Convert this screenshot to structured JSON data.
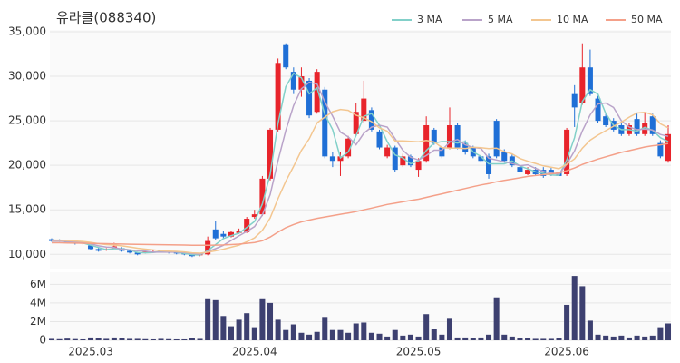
{
  "chart_data": {
    "type": "candlestick",
    "title": "유라클(088340)",
    "categories": [
      null,
      null,
      null,
      null,
      null,
      "2025.03",
      null,
      null,
      null,
      null,
      null,
      null,
      null,
      null,
      null,
      null,
      null,
      null,
      null,
      null,
      null,
      null,
      null,
      null,
      null,
      null,
      "2025.04",
      null,
      null,
      null,
      null,
      null,
      null,
      null,
      null,
      null,
      null,
      null,
      null,
      null,
      null,
      null,
      null,
      null,
      null,
      null,
      null,
      "2025.05",
      null,
      null,
      null,
      null,
      null,
      null,
      null,
      null,
      null,
      null,
      null,
      null,
      null,
      null,
      null,
      null,
      null,
      null,
      "2025.06",
      null,
      null,
      null,
      null,
      null,
      null,
      null,
      null,
      null,
      null,
      null,
      null,
      null
    ],
    "open": [
      11700,
      11600,
      11500,
      11400,
      11200,
      11000,
      10600,
      10500,
      10700,
      10700,
      10400,
      10200,
      10200,
      10300,
      10300,
      10300,
      10200,
      10100,
      10000,
      9900,
      10000,
      12800,
      12300,
      12000,
      12400,
      12500,
      14200,
      14500,
      18500,
      24000,
      33500,
      30500,
      28500,
      29500,
      26000,
      28500,
      21000,
      20500,
      21000,
      23500,
      25000,
      26200,
      23800,
      21000,
      22000,
      20000,
      21000,
      19500,
      20500,
      24000,
      22000,
      22000,
      24500,
      22500,
      22000,
      21000,
      21000,
      25000,
      21500,
      21000,
      19800,
      19000,
      19500,
      19500,
      19500,
      19200,
      19000,
      28000,
      27000,
      31000,
      27500,
      25500,
      25000,
      24500,
      23500,
      25200,
      23500,
      25500,
      22500,
      20500
    ],
    "high": [
      11800,
      11700,
      11600,
      11450,
      11400,
      11100,
      10700,
      10700,
      11300,
      10800,
      10500,
      10300,
      10400,
      10450,
      10500,
      10400,
      10300,
      10200,
      10100,
      10100,
      12000,
      13700,
      12600,
      12600,
      12900,
      14200,
      15000,
      18800,
      24200,
      32000,
      33700,
      31000,
      31000,
      29800,
      30800,
      28800,
      21500,
      21500,
      23300,
      27000,
      29500,
      26500,
      24000,
      22300,
      22200,
      21300,
      21200,
      20800,
      25500,
      24200,
      22200,
      26500,
      24800,
      22800,
      22200,
      21200,
      21300,
      25200,
      21800,
      21200,
      20000,
      19800,
      19800,
      19800,
      19700,
      19400,
      24200,
      29000,
      33700,
      33000,
      27800,
      25800,
      25300,
      24800,
      24800,
      25800,
      26000,
      25800,
      22800,
      24500
    ],
    "low": [
      11400,
      11400,
      11200,
      11100,
      11100,
      10500,
      10300,
      10400,
      10600,
      10300,
      10100,
      9900,
      10100,
      10200,
      10200,
      10100,
      10000,
      9900,
      9700,
      9800,
      9900,
      11600,
      11800,
      11900,
      12300,
      12400,
      14000,
      14300,
      18300,
      23800,
      30800,
      28000,
      27700,
      25300,
      25800,
      20800,
      19800,
      18800,
      20800,
      23300,
      24800,
      23800,
      21800,
      20800,
      19300,
      19800,
      19800,
      18700,
      20300,
      22300,
      20800,
      21800,
      21800,
      21200,
      20800,
      20300,
      18500,
      20800,
      20300,
      19800,
      19200,
      18900,
      18800,
      18600,
      18800,
      17800,
      18800,
      24300,
      26800,
      27800,
      24800,
      24300,
      23800,
      23300,
      23300,
      23300,
      23300,
      23300,
      20800,
      20300
    ],
    "close": [
      11500,
      11500,
      11300,
      11200,
      11300,
      10600,
      10400,
      10600,
      10900,
      10400,
      10200,
      10000,
      10300,
      10300,
      10400,
      10200,
      10100,
      10000,
      9800,
      10000,
      11500,
      11800,
      12000,
      12500,
      12600,
      14000,
      14500,
      18500,
      24000,
      31500,
      31000,
      28500,
      30000,
      25600,
      30500,
      21000,
      20500,
      21000,
      23000,
      26000,
      27500,
      24000,
      22000,
      22000,
      19500,
      21000,
      20000,
      20500,
      24500,
      22500,
      21000,
      24500,
      22000,
      21500,
      21000,
      20500,
      19000,
      21000,
      20500,
      20000,
      19300,
      19500,
      19000,
      18800,
      19000,
      18800,
      24000,
      26500,
      31000,
      28000,
      25000,
      24500,
      24000,
      23500,
      24500,
      23500,
      24800,
      23500,
      21000,
      23500
    ],
    "up_color": "#e8242b",
    "down_color": "#1f6fd6",
    "series": [
      {
        "name": "3 MA",
        "color": "#82d0c9",
        "values": [
          11500,
          11500,
          11430,
          11330,
          11270,
          11030,
          10770,
          10530,
          10630,
          10630,
          10500,
          10200,
          10170,
          10200,
          10330,
          10300,
          10230,
          10100,
          9970,
          9930,
          10430,
          11100,
          11770,
          12100,
          12370,
          13030,
          13700,
          15670,
          19000,
          24670,
          28830,
          30330,
          29830,
          28030,
          28700,
          25700,
          24000,
          20830,
          21500,
          23330,
          25500,
          25830,
          24500,
          22670,
          21170,
          20830,
          20170,
          20500,
          21670,
          22500,
          22670,
          22670,
          22500,
          22670,
          21500,
          21000,
          20170,
          20170,
          20170,
          20500,
          19930,
          19600,
          19270,
          19100,
          18930,
          18870,
          20600,
          23100,
          27170,
          28500,
          28000,
          25830,
          24500,
          24000,
          24000,
          23830,
          24270,
          23930,
          23100,
          22670
        ]
      },
      {
        "name": "5 MA",
        "color": "#b9a3c9",
        "values": [
          11500,
          11500,
          11450,
          11400,
          11360,
          11180,
          10960,
          10820,
          10760,
          10580,
          10500,
          10420,
          10360,
          10240,
          10240,
          10240,
          10260,
          10200,
          10100,
          10020,
          10320,
          10640,
          11020,
          11560,
          12080,
          12580,
          13120,
          14420,
          16720,
          20500,
          23900,
          26700,
          28600,
          29320,
          29120,
          27120,
          25520,
          23720,
          23200,
          22300,
          23600,
          24300,
          24500,
          24300,
          23000,
          21700,
          20900,
          20600,
          21100,
          21700,
          21700,
          22600,
          22900,
          22300,
          22000,
          21900,
          20800,
          20600,
          20400,
          20200,
          19960,
          20060,
          19660,
          19320,
          19120,
          19020,
          20120,
          21620,
          23860,
          25660,
          26900,
          27000,
          26500,
          25000,
          24300,
          24000,
          24060,
          23960,
          23460,
          23260
        ]
      },
      {
        "name": "10 MA",
        "color": "#f3c690",
        "values": [
          11600,
          11600,
          11550,
          11500,
          11450,
          11350,
          11200,
          11100,
          11050,
          10960,
          10840,
          10690,
          10590,
          10500,
          10410,
          10370,
          10340,
          10280,
          10170,
          10130,
          10240,
          10400,
          10580,
          10800,
          11030,
          11410,
          11850,
          12700,
          14100,
          16250,
          18200,
          19870,
          21670,
          22980,
          24770,
          25420,
          26020,
          26270,
          26170,
          25620,
          25350,
          24900,
          24200,
          23840,
          22740,
          22740,
          22690,
          22640,
          22790,
          22640,
          21990,
          21930,
          21930,
          21880,
          22030,
          21980,
          21880,
          21930,
          21530,
          21280,
          20760,
          20460,
          20210,
          19940,
          19790,
          19620,
          20120,
          20720,
          21920,
          22820,
          23390,
          23890,
          24390,
          24860,
          25410,
          25880,
          25960,
          25660,
          24660,
          24210
        ]
      },
      {
        "name": "50 MA",
        "color": "#f4a089",
        "values": [
          11300,
          11300,
          11280,
          11260,
          11250,
          11230,
          11210,
          11200,
          11180,
          11160,
          11140,
          11120,
          11110,
          11100,
          11090,
          11080,
          11060,
          11050,
          11030,
          11020,
          11030,
          11040,
          11060,
          11100,
          11150,
          11240,
          11330,
          11530,
          11950,
          12500,
          13000,
          13350,
          13650,
          13850,
          14050,
          14200,
          14350,
          14500,
          14650,
          14800,
          15000,
          15200,
          15400,
          15600,
          15750,
          15900,
          16050,
          16200,
          16400,
          16600,
          16800,
          17000,
          17200,
          17400,
          17600,
          17800,
          17950,
          18150,
          18300,
          18450,
          18600,
          18750,
          18850,
          18950,
          19050,
          19150,
          19400,
          19700,
          20100,
          20400,
          20700,
          20950,
          21200,
          21450,
          21650,
          21850,
          22050,
          22200,
          22300,
          22450
        ]
      }
    ],
    "ylim": [
      8400,
      35200
    ],
    "yticks": [
      {
        "value": 10000,
        "label": "10,000"
      },
      {
        "value": 15000,
        "label": "15,000"
      },
      {
        "value": 20000,
        "label": "20,000"
      },
      {
        "value": 25000,
        "label": "25,000"
      },
      {
        "value": 30000,
        "label": "30,000"
      },
      {
        "value": 35000,
        "label": "35,000"
      }
    ],
    "grid": true,
    "volume": {
      "color": "#3d4070",
      "values": [
        150000,
        120000,
        180000,
        130000,
        100000,
        300000,
        200000,
        150000,
        300000,
        200000,
        150000,
        150000,
        120000,
        100000,
        150000,
        120000,
        100000,
        100000,
        200000,
        150000,
        4500000,
        4300000,
        2600000,
        1500000,
        2200000,
        2900000,
        1400000,
        4500000,
        4000000,
        2200000,
        1100000,
        1700000,
        800000,
        600000,
        900000,
        2500000,
        1100000,
        1100000,
        800000,
        1800000,
        1900000,
        800000,
        700000,
        400000,
        1100000,
        500000,
        600000,
        400000,
        2800000,
        1200000,
        600000,
        2400000,
        300000,
        300000,
        200000,
        300000,
        600000,
        4600000,
        600000,
        400000,
        200000,
        200000,
        150000,
        150000,
        150000,
        200000,
        3800000,
        6900000,
        5800000,
        2100000,
        600000,
        500000,
        400000,
        500000,
        300000,
        500000,
        400000,
        500000,
        1400000,
        1800000
      ],
      "ylim": [
        0,
        7300000
      ],
      "yticks": [
        0,
        {
          "value": 2000000,
          "label": "2M"
        },
        {
          "value": 4000000,
          "label": "4M"
        },
        {
          "value": 6000000,
          "label": "6M"
        }
      ]
    }
  }
}
